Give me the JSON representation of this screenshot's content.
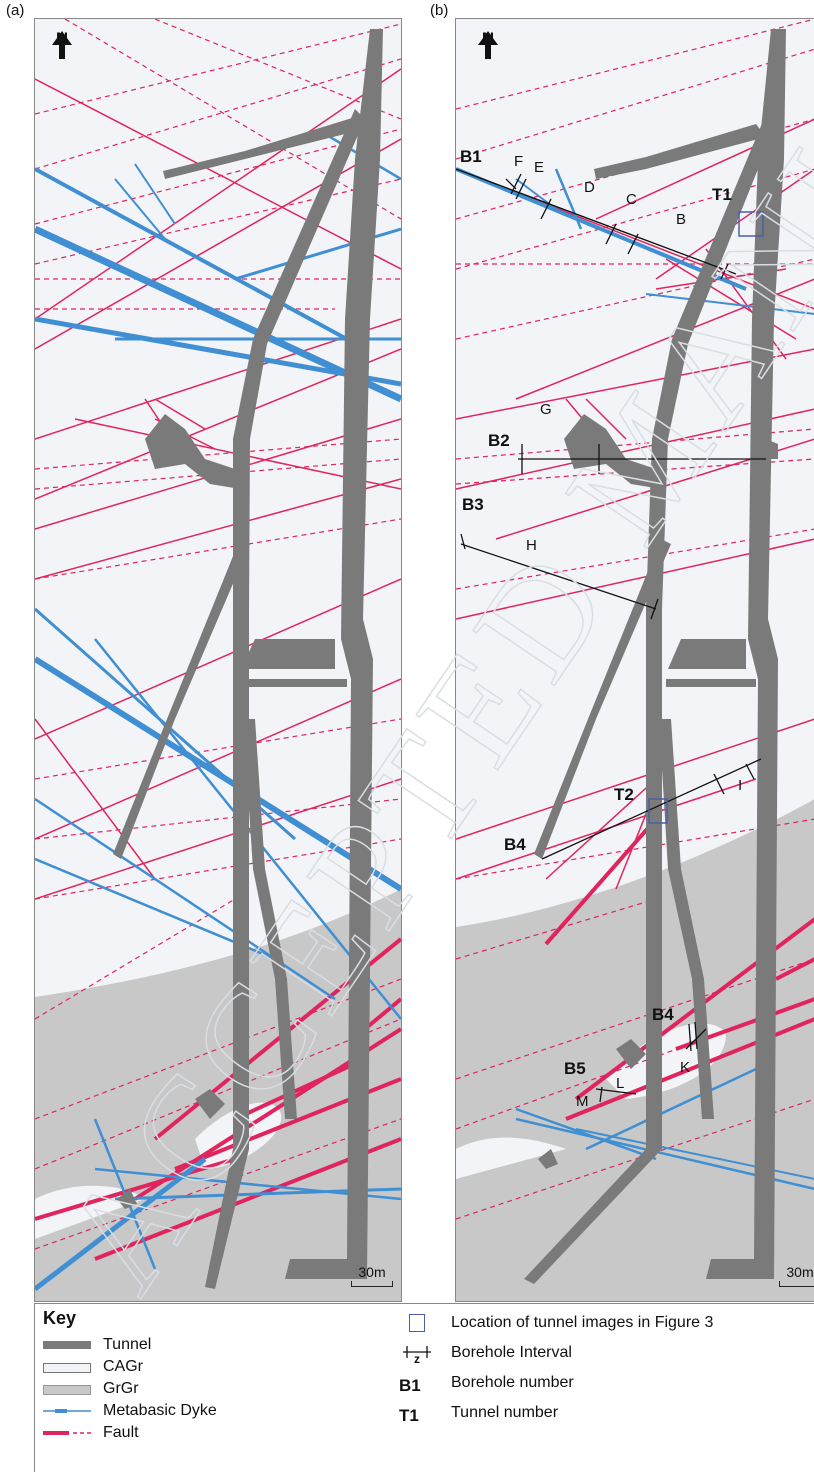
{
  "panels": {
    "a": {
      "label": "(a)",
      "north": "N",
      "scale": "30m"
    },
    "b": {
      "label": "(b)",
      "north": "N",
      "scale": "30m"
    }
  },
  "labels": {
    "B1": "B1",
    "B2": "B2",
    "B3": "B3",
    "B4_north": "B4",
    "B4_south": "B4",
    "B5": "B5",
    "T1": "T1",
    "T2": "T2",
    "F": "F",
    "E": "E",
    "D": "D",
    "C": "C",
    "B": "B",
    "G": "G",
    "H": "H",
    "I": "I",
    "K": "K",
    "L": "L",
    "M": "M"
  },
  "key": {
    "title": "Key",
    "items": [
      {
        "label": "Tunnel",
        "symbol": "tunnel"
      },
      {
        "label": "CAGr",
        "symbol": "cagr"
      },
      {
        "label": "GrGr",
        "symbol": "grgr"
      },
      {
        "label": "Metabasic Dyke",
        "symbol": "dyke"
      },
      {
        "label": "Fault",
        "symbol": "fault"
      },
      {
        "label": "Location of tunnel images in Figure 3",
        "symbol": "box"
      },
      {
        "label": "Borehole Interval",
        "symbol": "interval",
        "mark": "z"
      },
      {
        "label": "Borehole number",
        "symbol": "B1"
      },
      {
        "label": "Tunnel number",
        "symbol": "T1"
      }
    ]
  },
  "colors": {
    "tunnel": "#7a7a7a",
    "cagr": "#f2f4f7",
    "grgr": "#c8c8c8",
    "dyke": "#3f8fd2",
    "fault": "#e0245e",
    "frame": "#4a5fa8"
  },
  "watermark": "ACCEPTED MANUSCRIPT"
}
